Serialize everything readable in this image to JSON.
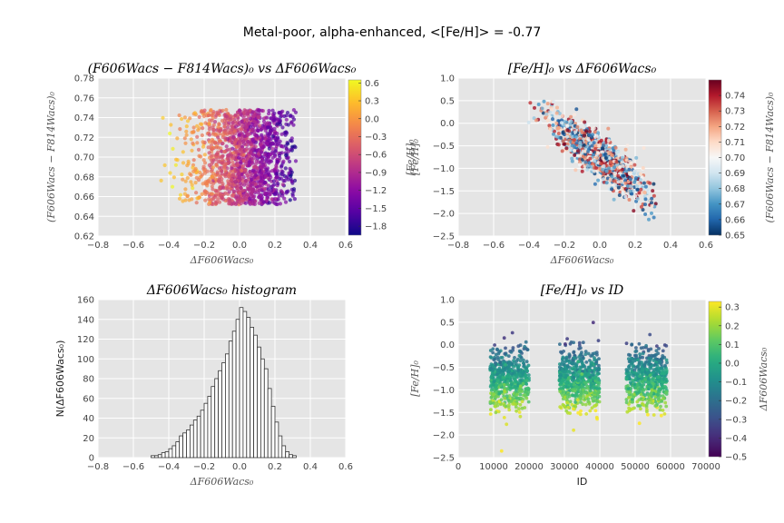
{
  "figure": {
    "suptitle": "Metal-poor, alpha-enhanced, <[Fe/H]> =  -0.77"
  },
  "chart_data": [
    {
      "id": "color_vs_dmag",
      "type": "scatter",
      "title": "(F606Wacs − F814Wacs)₀ vs ΔF606Wacs₀",
      "xlabel": "ΔF606Wacs₀",
      "ylabel": "(F606Wacs − F814Wacs)₀",
      "xlim": [
        -0.8,
        0.6
      ],
      "ylim": [
        0.62,
        0.78
      ],
      "xticks": [
        "−0.8",
        "−0.6",
        "−0.4",
        "−0.2",
        "0.0",
        "0.2",
        "0.4",
        "0.6"
      ],
      "yticks": [
        "0.62",
        "0.64",
        "0.66",
        "0.68",
        "0.70",
        "0.72",
        "0.74",
        "0.76",
        "0.78"
      ],
      "points_summary": {
        "n": 2500,
        "x_range": [
          -0.48,
          0.32
        ],
        "y_range": [
          0.652,
          0.748
        ]
      },
      "colorbar": {
        "label": "[Fe/H]₀",
        "cmap": "plasma",
        "range": [
          -1.95,
          0.65
        ],
        "ticks": [
          "0.6",
          "0.3",
          "0.0",
          "−0.3",
          "−0.6",
          "−0.9",
          "−1.2",
          "−1.5",
          "−1.8"
        ]
      },
      "grid": true
    },
    {
      "id": "feh_vs_dmag",
      "type": "scatter",
      "title": "[Fe/H]₀ vs ΔF606Wacs₀",
      "xlabel": "ΔF606Wacs₀",
      "ylabel": "[Fe/H]₀",
      "xlim": [
        -0.8,
        0.6
      ],
      "ylim": [
        -2.5,
        1.0
      ],
      "xticks": [
        "−0.8",
        "−0.6",
        "−0.4",
        "−0.2",
        "0.0",
        "0.2",
        "0.4",
        "0.6"
      ],
      "yticks": [
        "−2.5",
        "−2.0",
        "−1.5",
        "−1.0",
        "−0.5",
        "0.0",
        "0.5",
        "1.0"
      ],
      "trend": {
        "slope": -2.9,
        "intercept": -0.77,
        "scatter": 0.22
      },
      "colorbar": {
        "label": "(F606Wacs − F814Wacs)₀",
        "cmap": "RdBu_r",
        "range": [
          0.65,
          0.75
        ],
        "ticks": [
          "0.74",
          "0.73",
          "0.72",
          "0.71",
          "0.70",
          "0.69",
          "0.68",
          "0.67",
          "0.66",
          "0.65"
        ]
      },
      "grid": true
    },
    {
      "id": "dmag_histogram",
      "type": "bar",
      "title": "ΔF606Wacs₀ histogram",
      "xlabel": "ΔF606Wacs₀",
      "ylabel": "N(ΔF606Wacs₀)",
      "xlim": [
        -0.8,
        0.6
      ],
      "ylim": [
        0,
        160
      ],
      "xticks": [
        "−0.8",
        "−0.6",
        "−0.4",
        "−0.2",
        "0.0",
        "0.2",
        "0.4",
        "0.6"
      ],
      "yticks": [
        "0",
        "20",
        "40",
        "60",
        "80",
        "100",
        "120",
        "140",
        "160"
      ],
      "bin_centers": [
        -0.49,
        -0.47,
        -0.45,
        -0.43,
        -0.41,
        -0.39,
        -0.37,
        -0.35,
        -0.33,
        -0.31,
        -0.29,
        -0.27,
        -0.25,
        -0.23,
        -0.21,
        -0.19,
        -0.17,
        -0.15,
        -0.13,
        -0.11,
        -0.09,
        -0.07,
        -0.05,
        -0.03,
        -0.01,
        0.01,
        0.03,
        0.05,
        0.07,
        0.09,
        0.11,
        0.13,
        0.15,
        0.17,
        0.19,
        0.21,
        0.23,
        0.25,
        0.27,
        0.29,
        0.31
      ],
      "values": [
        2,
        2,
        3,
        5,
        6,
        9,
        12,
        16,
        22,
        25,
        28,
        33,
        38,
        42,
        48,
        55,
        62,
        72,
        80,
        88,
        96,
        105,
        118,
        128,
        140,
        152,
        148,
        142,
        132,
        124,
        112,
        100,
        90,
        70,
        52,
        36,
        22,
        12,
        6,
        3,
        2
      ],
      "grid": true
    },
    {
      "id": "feh_vs_id",
      "type": "scatter",
      "title": "[Fe/H]₀ vs ID",
      "xlabel": "ID",
      "ylabel": "[Fe/H]₀",
      "xlim": [
        0,
        70000
      ],
      "ylim": [
        -2.5,
        1.0
      ],
      "xticks": [
        "0",
        "10000",
        "20000",
        "30000",
        "40000",
        "50000",
        "60000",
        "70000"
      ],
      "yticks": [
        "−2.5",
        "−2.0",
        "−1.5",
        "−1.0",
        "−0.5",
        "0.0",
        "0.5",
        "1.0"
      ],
      "id_groups": [
        [
          9000,
          20000
        ],
        [
          28500,
          40000
        ],
        [
          47500,
          59000
        ]
      ],
      "colorbar": {
        "label": "ΔF606Wacs₀",
        "cmap": "viridis",
        "range": [
          -0.5,
          0.33
        ],
        "ticks": [
          "0.3",
          "0.2",
          "0.1",
          "0.0",
          "−0.1",
          "−0.2",
          "−0.3",
          "−0.4",
          "−0.5"
        ]
      },
      "grid": true
    }
  ]
}
